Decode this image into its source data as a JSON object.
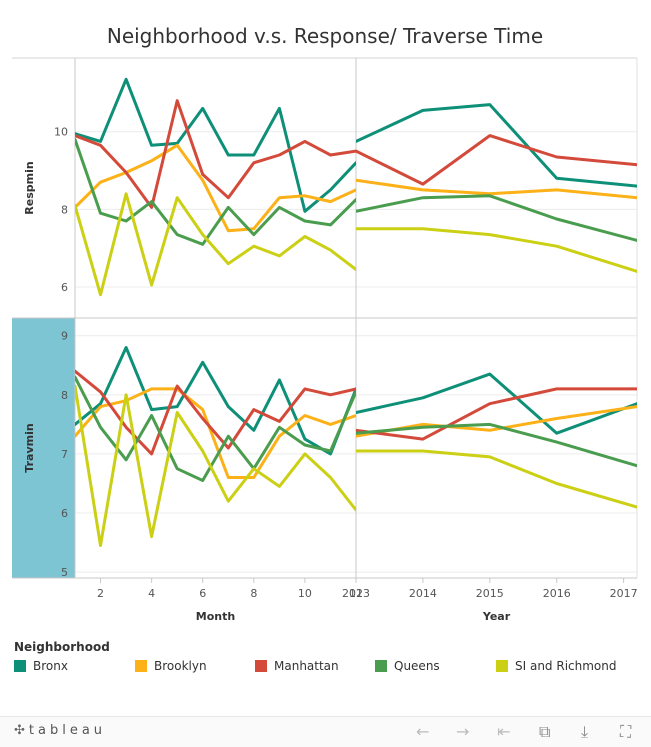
{
  "chart_data": {
    "type": "line",
    "title": "Neighborhood v.s. Response/ Traverse Time",
    "panels": {
      "rows": [
        {
          "measure": "Respmin",
          "yticks": [
            6,
            8,
            10
          ],
          "ylim": [
            5.2,
            11.9
          ]
        },
        {
          "measure": "Travmin",
          "yticks": [
            5,
            6,
            7,
            8,
            9
          ],
          "ylim": [
            4.9,
            9.3
          ]
        }
      ],
      "columns": [
        {
          "field": "Month",
          "xlabel": "Month",
          "xticks": [
            2,
            4,
            6,
            8,
            10,
            12
          ],
          "xlim": [
            1,
            12
          ]
        },
        {
          "field": "Year",
          "xlabel": "Year",
          "xticks": [
            2013,
            2014,
            2015,
            2016,
            2017
          ],
          "xlim": [
            2013,
            2017.2
          ]
        }
      ]
    },
    "month_x": [
      1,
      2,
      3,
      4,
      5,
      6,
      7,
      8,
      9,
      10,
      11,
      12
    ],
    "year_x": [
      2013,
      2014,
      2015,
      2016,
      2017.2
    ],
    "series": [
      {
        "name": "Bronx",
        "color": "#0e8f78",
        "respmin_month": [
          9.95,
          9.75,
          11.35,
          9.65,
          9.7,
          10.6,
          9.4,
          9.4,
          10.6,
          7.95,
          8.5,
          9.2
        ],
        "respmin_year": [
          9.75,
          10.55,
          10.7,
          8.8,
          8.6
        ],
        "travmin_month": [
          7.5,
          7.85,
          8.8,
          7.75,
          7.8,
          8.55,
          7.8,
          7.4,
          8.25,
          7.25,
          7.0,
          8.1
        ],
        "travmin_year": [
          7.7,
          7.95,
          8.35,
          7.35,
          7.85
        ]
      },
      {
        "name": "Brooklyn",
        "color": "#fbb117",
        "respmin_month": [
          8.05,
          8.7,
          8.95,
          9.25,
          9.65,
          8.75,
          7.45,
          7.5,
          8.3,
          8.35,
          8.2,
          8.5
        ],
        "respmin_year": [
          8.75,
          8.5,
          8.4,
          8.5,
          8.3
        ],
        "travmin_month": [
          7.3,
          7.8,
          7.9,
          8.1,
          8.1,
          7.75,
          6.6,
          6.6,
          7.3,
          7.65,
          7.5,
          7.65
        ],
        "travmin_year": [
          7.3,
          7.5,
          7.4,
          7.6,
          7.8
        ]
      },
      {
        "name": "Manhattan",
        "color": "#d34a3b",
        "respmin_month": [
          9.9,
          9.65,
          8.95,
          8.05,
          10.8,
          8.9,
          8.3,
          9.2,
          9.4,
          9.75,
          9.4,
          9.5
        ],
        "respmin_year": [
          9.5,
          8.65,
          9.9,
          9.35,
          9.15
        ],
        "travmin_month": [
          8.4,
          8.05,
          7.45,
          7.0,
          8.15,
          7.6,
          7.1,
          7.75,
          7.55,
          8.1,
          8.0,
          8.1
        ],
        "travmin_year": [
          7.4,
          7.25,
          7.85,
          8.1,
          8.1
        ]
      },
      {
        "name": "Queens",
        "color": "#4a9d4e",
        "respmin_month": [
          9.8,
          7.9,
          7.7,
          8.2,
          7.35,
          7.1,
          8.05,
          7.35,
          8.05,
          7.7,
          7.6,
          8.25
        ],
        "respmin_year": [
          7.95,
          8.3,
          8.35,
          7.75,
          7.2
        ],
        "travmin_month": [
          8.3,
          7.45,
          6.9,
          7.65,
          6.75,
          6.55,
          7.3,
          6.75,
          7.45,
          7.15,
          7.05,
          8.05
        ],
        "travmin_year": [
          7.35,
          7.45,
          7.5,
          7.2,
          6.8
        ]
      },
      {
        "name": "SI and Richmond",
        "color": "#cbd014",
        "respmin_month": [
          8.1,
          5.8,
          8.4,
          6.05,
          8.3,
          7.35,
          6.6,
          7.05,
          6.8,
          7.3,
          6.95,
          6.45
        ],
        "respmin_year": [
          7.5,
          7.5,
          7.35,
          7.05,
          6.4
        ],
        "travmin_month": [
          8.15,
          5.45,
          8.0,
          5.6,
          7.7,
          7.05,
          6.2,
          6.75,
          6.45,
          7.0,
          6.6,
          6.05
        ],
        "travmin_year": [
          7.05,
          7.05,
          6.95,
          6.5,
          6.1
        ]
      }
    ],
    "legend": {
      "title": "Neighborhood",
      "position": "bottom"
    },
    "grid": true
  },
  "toolbar": {
    "brand": "tableau",
    "brand_mark": "✣",
    "icons": [
      "undo-icon",
      "redo-icon",
      "revert-icon",
      "share-icon",
      "download-icon",
      "fullscreen-icon"
    ]
  }
}
